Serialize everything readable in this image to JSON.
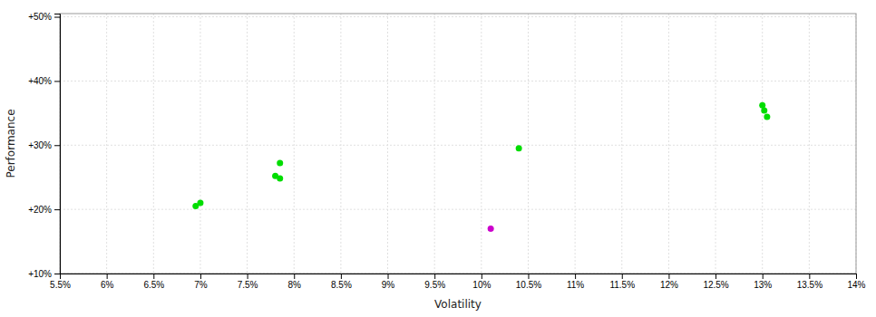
{
  "chart_data": {
    "type": "scatter",
    "xlabel": "Volatility",
    "ylabel": "Performance",
    "xlim": [
      0.055,
      0.14
    ],
    "ylim": [
      0.1,
      0.505
    ],
    "xticks": [
      {
        "value": 0.055,
        "label": "5.5%"
      },
      {
        "value": 0.06,
        "label": "6%"
      },
      {
        "value": 0.065,
        "label": "6.5%"
      },
      {
        "value": 0.07,
        "label": "7%"
      },
      {
        "value": 0.075,
        "label": "7.5%"
      },
      {
        "value": 0.08,
        "label": "8%"
      },
      {
        "value": 0.085,
        "label": "8.5%"
      },
      {
        "value": 0.09,
        "label": "9%"
      },
      {
        "value": 0.095,
        "label": "9.5%"
      },
      {
        "value": 0.1,
        "label": "10%"
      },
      {
        "value": 0.105,
        "label": "10.5%"
      },
      {
        "value": 0.11,
        "label": "11%"
      },
      {
        "value": 0.115,
        "label": "11.5%"
      },
      {
        "value": 0.12,
        "label": "12%"
      },
      {
        "value": 0.125,
        "label": "12.5%"
      },
      {
        "value": 0.13,
        "label": "13%"
      },
      {
        "value": 0.135,
        "label": "13.5%"
      },
      {
        "value": 0.14,
        "label": "14%"
      }
    ],
    "yticks": [
      {
        "value": 0.1,
        "label": "+10%"
      },
      {
        "value": 0.2,
        "label": "+20%"
      },
      {
        "value": 0.3,
        "label": "+30%"
      },
      {
        "value": 0.4,
        "label": "+40%"
      },
      {
        "value": 0.5,
        "label": "+50%"
      }
    ],
    "grid": true,
    "series": [
      {
        "color": "#00dd00",
        "x": [
          0.0695,
          0.07,
          0.0785,
          0.078,
          0.0785,
          0.104,
          0.13,
          0.1302,
          0.1305
        ],
        "values": [
          0.205,
          0.21,
          0.272,
          0.252,
          0.248,
          0.295,
          0.362,
          0.354,
          0.344
        ]
      },
      {
        "color": "#cc00cc",
        "x": [
          0.101
        ],
        "values": [
          0.17
        ]
      }
    ]
  }
}
